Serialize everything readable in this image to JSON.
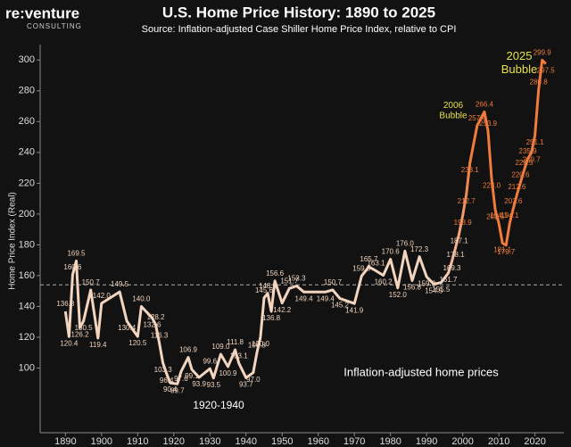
{
  "logo": {
    "name": "re:venture",
    "tagline": "CONSULTING"
  },
  "chart_data": {
    "type": "line",
    "title": "U.S. Home Price History: 1890 to 2025",
    "subtitle": "Source: Inflation-adjusted Case Shiller Home Price Index, relative to CPI",
    "y_label": "Home Price Index (Real)",
    "annotations": [
      "2006 Bubble",
      "2025 Bubble",
      "1920-1940",
      "Inflation-adjusted home prices"
    ],
    "x": [
      1890,
      1891,
      1892,
      1893,
      1894,
      1895,
      1897,
      1899,
      1900,
      1905,
      1907,
      1910,
      1911,
      1914,
      1915,
      1916,
      1917,
      1918,
      1919,
      1921,
      1922,
      1924,
      1925,
      1927,
      1930,
      1931,
      1933,
      1935,
      1937,
      1938,
      1940,
      1942,
      1943,
      1944,
      1945,
      1946,
      1947,
      1948,
      1950,
      1952,
      1954,
      1956,
      1962,
      1964,
      1966,
      1970,
      1972,
      1974,
      1976,
      1978,
      1980,
      1982,
      1984,
      1986,
      1988,
      1990,
      1992,
      1994,
      1996,
      1997,
      1998,
      1999,
      2000,
      2001,
      2002,
      2004,
      2006,
      2007,
      2008,
      2009,
      2010,
      2011,
      2012,
      2013,
      2014,
      2015,
      2016,
      2017,
      2018,
      2019,
      2020,
      2021,
      2022,
      2023
    ],
    "series": [
      {
        "color": "#f3d5bf",
        "values": [
          136.8,
          120.4,
          160.6,
          169.5,
          126.2,
          130.5,
          150.7,
          119.4,
          142.0,
          149.5,
          130.4,
          120.5,
          140.0,
          132.6,
          128.2,
          116.3,
          103.3,
          96.4,
          90.4,
          89.7,
          97.6,
          106.9,
          99.1,
          93.9,
          99.6,
          93.5,
          109.0,
          100.9,
          111.8,
          103.1,
          93.7,
          97.0,
          109.8,
          120.0,
          145.6,
          148.5,
          136.8,
          156.6,
          142.2,
          151.7,
          153.3,
          149.4,
          149.4,
          150.7,
          145.2,
          141.9,
          159.8,
          165.7,
          163.1,
          160.2,
          170.6,
          152.0,
          176.0,
          156.8,
          172.3,
          159.2,
          154.5,
          155.5,
          161.7,
          169.3,
          178.1,
          187.1,
          198.9,
          212.7,
          233.1,
          257.4,
          266.4,
          253.9,
          223.0,
          202.6,
          194.1,
          181.1,
          179.7,
          194.1,
          203.6,
          212.6,
          220.6,
          228.5,
          235.9,
          239.7,
          251.1,
          280.8,
          299.9,
          297.5
        ],
        "value_labels": [
          "136.8",
          "120.4",
          "160.6",
          "169.5",
          "126.2",
          "130.5",
          "150.7",
          "119.4",
          "142.0",
          "149.5",
          "130.4",
          "120.5",
          "140.0",
          "132.6",
          "128.2",
          "116.3",
          "103.3",
          "96.4",
          "90.4",
          "89.7",
          "97.6",
          "106.9",
          "99.1",
          "93.9",
          "99.6",
          "93.5",
          "109.0",
          "100.9",
          "111.8",
          "103.1",
          "93.7",
          "97.0",
          "109.8",
          "120.0",
          "145.6",
          "148.5",
          "136.8",
          "156.6",
          "142.2",
          "151.7",
          "153.3",
          "149.4",
          "149.4",
          "150.7",
          "145.2",
          "141.9",
          "159.8",
          "165.7",
          "163.1",
          "160.2",
          "170.6",
          "152.0",
          "176.0",
          "156.8",
          "172.3",
          "159.2",
          "154.5",
          "155.5",
          "161.7",
          "169.3",
          "178.1",
          "187.1",
          "198.9",
          "212.7",
          "233.1",
          "257.4",
          "266.4",
          "253.9",
          "223.0",
          "202.6",
          "194.1",
          "181.1",
          "179.7",
          "194.1",
          "203.6",
          "212.6",
          "220.6",
          "228.5",
          "235.9",
          "239.7",
          "251.1",
          "280.8",
          "299.9",
          "297.5"
        ]
      }
    ],
    "highlight_color": "#f07b3c",
    "highlight_from": 2000,
    "reference_line": 154,
    "xlim": [
      1883,
      2028
    ],
    "xticks": [
      1890,
      1900,
      1910,
      1920,
      1930,
      1940,
      1950,
      1960,
      1970,
      1980,
      1990,
      2000,
      2010,
      2020
    ],
    "ylim": [
      58,
      310
    ],
    "yticks": [
      100,
      120,
      140,
      160,
      180,
      200,
      220,
      240,
      260,
      280,
      300
    ],
    "grid": false
  }
}
